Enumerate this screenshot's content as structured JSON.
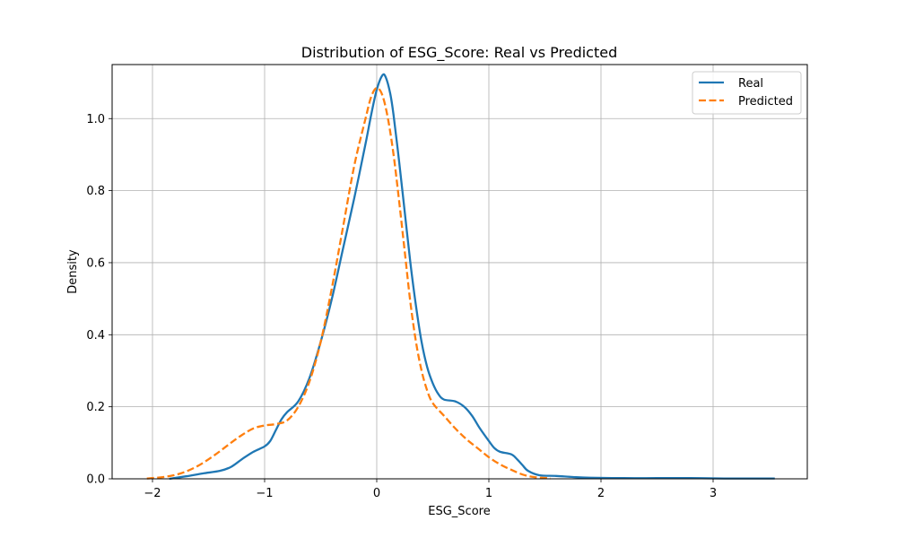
{
  "chart_data": {
    "type": "line",
    "title": "Distribution of ESG_Score: Real vs Predicted",
    "xlabel": "ESG_Score",
    "ylabel": "Density",
    "xlim": [
      -2.36,
      3.84
    ],
    "ylim": [
      0,
      1.15
    ],
    "xticks": [
      -2,
      -1,
      0,
      1,
      2,
      3
    ],
    "xtick_labels": [
      "−2",
      "−1",
      "0",
      "1",
      "2",
      "3"
    ],
    "yticks": [
      0.0,
      0.2,
      0.4,
      0.6,
      0.8,
      1.0
    ],
    "ytick_labels": [
      "0.0",
      "0.2",
      "0.4",
      "0.6",
      "0.8",
      "1.0"
    ],
    "grid": true,
    "legend_position": "top-right",
    "series": [
      {
        "name": "Real",
        "color": "#1f77b4",
        "style": "solid",
        "points": [
          [
            -1.85,
            0.0
          ],
          [
            -1.7,
            0.007
          ],
          [
            -1.55,
            0.015
          ],
          [
            -1.4,
            0.022
          ],
          [
            -1.3,
            0.033
          ],
          [
            -1.2,
            0.055
          ],
          [
            -1.1,
            0.075
          ],
          [
            -1.0,
            0.09
          ],
          [
            -0.95,
            0.105
          ],
          [
            -0.9,
            0.135
          ],
          [
            -0.85,
            0.165
          ],
          [
            -0.8,
            0.185
          ],
          [
            -0.7,
            0.215
          ],
          [
            -0.6,
            0.28
          ],
          [
            -0.5,
            0.38
          ],
          [
            -0.4,
            0.5
          ],
          [
            -0.3,
            0.64
          ],
          [
            -0.2,
            0.78
          ],
          [
            -0.1,
            0.93
          ],
          [
            -0.05,
            1.01
          ],
          [
            0.0,
            1.08
          ],
          [
            0.05,
            1.12
          ],
          [
            0.08,
            1.115
          ],
          [
            0.12,
            1.07
          ],
          [
            0.15,
            1.01
          ],
          [
            0.2,
            0.88
          ],
          [
            0.25,
            0.74
          ],
          [
            0.3,
            0.6
          ],
          [
            0.35,
            0.48
          ],
          [
            0.4,
            0.38
          ],
          [
            0.45,
            0.31
          ],
          [
            0.5,
            0.265
          ],
          [
            0.55,
            0.235
          ],
          [
            0.6,
            0.22
          ],
          [
            0.7,
            0.215
          ],
          [
            0.78,
            0.2
          ],
          [
            0.85,
            0.175
          ],
          [
            0.92,
            0.14
          ],
          [
            1.0,
            0.105
          ],
          [
            1.05,
            0.085
          ],
          [
            1.1,
            0.075
          ],
          [
            1.2,
            0.068
          ],
          [
            1.25,
            0.055
          ],
          [
            1.3,
            0.038
          ],
          [
            1.35,
            0.022
          ],
          [
            1.45,
            0.01
          ],
          [
            1.6,
            0.008
          ],
          [
            1.75,
            0.005
          ],
          [
            1.9,
            0.003
          ],
          [
            2.2,
            0.002
          ],
          [
            2.5,
            0.002
          ],
          [
            2.8,
            0.002
          ],
          [
            3.1,
            0.001
          ],
          [
            3.55,
            0.001
          ]
        ]
      },
      {
        "name": "Predicted",
        "color": "#ff7f0e",
        "style": "dashed",
        "points": [
          [
            -2.05,
            0.001
          ],
          [
            -1.9,
            0.005
          ],
          [
            -1.75,
            0.015
          ],
          [
            -1.6,
            0.035
          ],
          [
            -1.45,
            0.065
          ],
          [
            -1.3,
            0.1
          ],
          [
            -1.2,
            0.122
          ],
          [
            -1.1,
            0.14
          ],
          [
            -1.0,
            0.148
          ],
          [
            -0.9,
            0.152
          ],
          [
            -0.8,
            0.162
          ],
          [
            -0.7,
            0.2
          ],
          [
            -0.6,
            0.27
          ],
          [
            -0.5,
            0.38
          ],
          [
            -0.4,
            0.53
          ],
          [
            -0.3,
            0.7
          ],
          [
            -0.2,
            0.87
          ],
          [
            -0.1,
            1.0
          ],
          [
            -0.05,
            1.06
          ],
          [
            0.0,
            1.085
          ],
          [
            0.05,
            1.065
          ],
          [
            0.1,
            1.0
          ],
          [
            0.15,
            0.9
          ],
          [
            0.2,
            0.77
          ],
          [
            0.25,
            0.63
          ],
          [
            0.3,
            0.49
          ],
          [
            0.35,
            0.38
          ],
          [
            0.4,
            0.3
          ],
          [
            0.45,
            0.245
          ],
          [
            0.5,
            0.21
          ],
          [
            0.6,
            0.175
          ],
          [
            0.7,
            0.14
          ],
          [
            0.8,
            0.11
          ],
          [
            0.9,
            0.085
          ],
          [
            1.0,
            0.06
          ],
          [
            1.1,
            0.04
          ],
          [
            1.2,
            0.025
          ],
          [
            1.3,
            0.012
          ],
          [
            1.4,
            0.005
          ],
          [
            1.55,
            0.001
          ]
        ]
      }
    ]
  }
}
